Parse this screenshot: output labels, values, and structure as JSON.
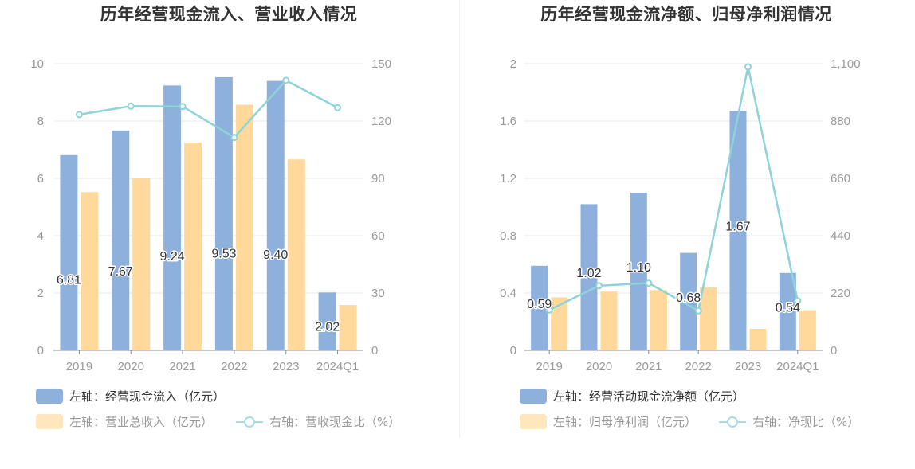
{
  "chart_data": [
    {
      "type": "bar",
      "title": "历年经营现金流入、营业收入情况",
      "categories": [
        "2019",
        "2020",
        "2021",
        "2022",
        "2023",
        "2024Q1"
      ],
      "left_axis": {
        "ticks": [
          "0",
          "2",
          "4",
          "6",
          "8",
          "10"
        ],
        "range": [
          0,
          10
        ]
      },
      "right_axis": {
        "ticks": [
          "0",
          "30",
          "60",
          "90",
          "120",
          "150"
        ],
        "range": [
          0,
          150
        ]
      },
      "series": [
        {
          "name": "左轴：经营现金流入（亿元）",
          "kind": "bar",
          "axis": "left",
          "color": "#8eb0dd",
          "values": [
            6.81,
            7.67,
            9.24,
            9.53,
            9.4,
            2.02
          ],
          "labels": [
            "6.81",
            "7.67",
            "9.24",
            "9.53",
            "9.40",
            "2.02"
          ]
        },
        {
          "name": "左轴：营业总收入（亿元）",
          "kind": "bar",
          "axis": "left",
          "color": "#fed99b",
          "values": [
            5.52,
            6.0,
            7.25,
            8.57,
            6.66,
            1.58
          ]
        },
        {
          "name": "右轴：营收现金比（%）",
          "kind": "line",
          "axis": "right",
          "color": "#8dd4d9",
          "values": [
            123.4,
            127.8,
            127.6,
            111.4,
            141.3,
            127.0
          ]
        }
      ],
      "grid": true,
      "legend_position": "bottom"
    },
    {
      "type": "bar",
      "title": "历年经营现金流净额、归母净利润情况",
      "categories": [
        "2019",
        "2020",
        "2021",
        "2022",
        "2023",
        "2024Q1"
      ],
      "left_axis": {
        "ticks": [
          "0",
          "0.4",
          "0.8",
          "1.2",
          "1.6",
          "2"
        ],
        "range": [
          0,
          2
        ]
      },
      "right_axis": {
        "ticks": [
          "0",
          "220",
          "440",
          "660",
          "880",
          "1,100"
        ],
        "range": [
          0,
          1100
        ]
      },
      "series": [
        {
          "name": "左轴：经营活动现金流净额（亿元）",
          "kind": "bar",
          "axis": "left",
          "color": "#8eb0dd",
          "values": [
            0.59,
            1.02,
            1.1,
            0.68,
            1.67,
            0.54
          ],
          "labels": [
            "0.59",
            "1.02",
            "1.10",
            "0.68",
            "1.67",
            "0.54"
          ]
        },
        {
          "name": "左轴：归母净利润（亿元）",
          "kind": "bar",
          "axis": "left",
          "color": "#fed99b",
          "values": [
            0.37,
            0.41,
            0.42,
            0.44,
            0.15,
            0.28
          ]
        },
        {
          "name": "右轴：净现比（%）",
          "kind": "line",
          "axis": "right",
          "color": "#8dd4d9",
          "values": [
            155,
            248,
            258,
            152,
            1088,
            190
          ]
        }
      ],
      "grid": true,
      "legend_position": "bottom"
    }
  ]
}
